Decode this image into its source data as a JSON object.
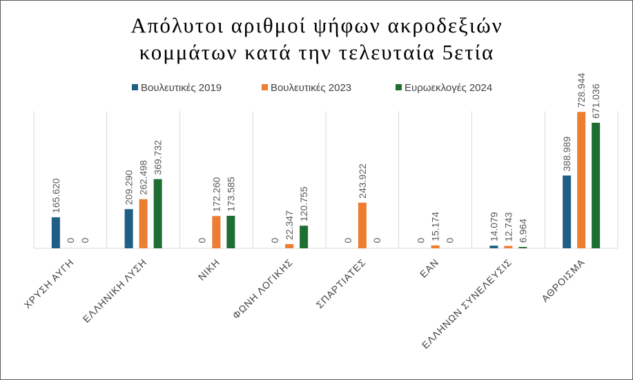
{
  "chart_data": {
    "type": "bar",
    "title": [
      "Απόλυτοι αριθμοί ψήφων ακροδεξιών",
      "κομμάτων κατά την τελευταία 5ετία"
    ],
    "categories": [
      "ΧΡΥΣΗ ΑΥΓΗ",
      "ΕΛΛΗΝΙΚΗ ΛΥΣΗ",
      "ΝΙΚΗ",
      "ΦΩΝΗ ΛΟΓΙΚΗΣ",
      "ΣΠΑΡΤΙΑΤΕΣ",
      "ΕΑΝ",
      "ΕΛΛΗΝΩΝ ΣΥΝΕΛΕΥΣΙΣ",
      "ΑΘΡΟΙΣΜΑ"
    ],
    "series": [
      {
        "name": "Βουλευτικές 2019",
        "color": "#1f5f86",
        "values": [
          165620,
          209290,
          0,
          0,
          0,
          0,
          14079,
          388989
        ],
        "labels": [
          "165.620",
          "209.290",
          "0",
          "0",
          "0",
          "0",
          "14.079",
          "388.989"
        ]
      },
      {
        "name": "Βουλευτικές 2023",
        "color": "#ed7d31",
        "values": [
          0,
          262498,
          172260,
          22347,
          243922,
          15174,
          12743,
          728944
        ],
        "labels": [
          "0",
          "262.498",
          "172.260",
          "22.347",
          "243.922",
          "15.174",
          "12.743",
          "728.944"
        ]
      },
      {
        "name": "Ευρωεκλογές 2024",
        "color": "#1e6e32",
        "values": [
          0,
          369732,
          173585,
          120755,
          0,
          0,
          6964,
          671036
        ],
        "labels": [
          "0",
          "369.732",
          "173.585",
          "120.755",
          "0",
          "0",
          "6.964",
          "671.036"
        ]
      }
    ],
    "ylim": [
      0,
      800000
    ],
    "legend_position": "top",
    "grid": "vertical-category-separators"
  }
}
